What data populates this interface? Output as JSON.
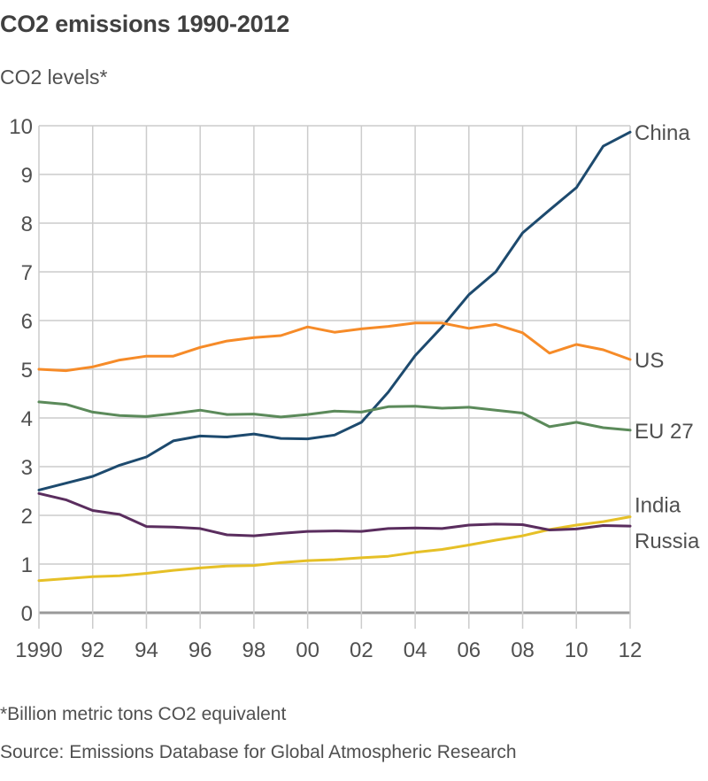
{
  "chart_data": {
    "type": "line",
    "title": "CO2 emissions 1990-2012",
    "subtitle": "CO2 levels*",
    "xlabel": "",
    "ylabel": "",
    "footnote": "*Billion metric tons CO2 equivalent",
    "source": "Source: Emissions Database for Global Atmospheric Research",
    "grid": true,
    "legend": "end-of-line labels (right)",
    "xlim": [
      1990,
      2012
    ],
    "ylim": [
      0,
      10
    ],
    "y_ticks": [
      0,
      1,
      2,
      3,
      4,
      5,
      6,
      7,
      8,
      9,
      10
    ],
    "y_tick_labels": [
      "0",
      "1",
      "2",
      "3",
      "4",
      "5",
      "6",
      "7",
      "8",
      "9",
      "10"
    ],
    "x_ticks": [
      1990,
      1992,
      1994,
      1996,
      1998,
      2000,
      2002,
      2004,
      2006,
      2008,
      2010,
      2012
    ],
    "x_tick_labels": [
      "1990",
      "92",
      "94",
      "96",
      "98",
      "00",
      "02",
      "04",
      "06",
      "08",
      "10",
      "12"
    ],
    "x": [
      1990,
      1991,
      1992,
      1993,
      1994,
      1995,
      1996,
      1997,
      1998,
      1999,
      2000,
      2001,
      2002,
      2003,
      2004,
      2005,
      2006,
      2007,
      2008,
      2009,
      2010,
      2011,
      2012
    ],
    "series": [
      {
        "name": "China",
        "label": "China",
        "color": "#1d4a6e",
        "values": [
          2.52,
          2.66,
          2.8,
          3.03,
          3.2,
          3.53,
          3.63,
          3.61,
          3.67,
          3.58,
          3.57,
          3.65,
          3.91,
          4.53,
          5.28,
          5.87,
          6.53,
          7.0,
          7.8,
          8.27,
          8.73,
          9.58,
          9.87
        ]
      },
      {
        "name": "US",
        "label": "US",
        "color": "#f68b28",
        "values": [
          5.0,
          4.97,
          5.05,
          5.19,
          5.27,
          5.27,
          5.45,
          5.58,
          5.65,
          5.69,
          5.87,
          5.76,
          5.83,
          5.88,
          5.95,
          5.95,
          5.84,
          5.92,
          5.75,
          5.33,
          5.51,
          5.4,
          5.2
        ]
      },
      {
        "name": "EU 27",
        "label": "EU 27",
        "color": "#5b8a5a",
        "values": [
          4.33,
          4.28,
          4.12,
          4.05,
          4.03,
          4.09,
          4.16,
          4.07,
          4.08,
          4.02,
          4.07,
          4.14,
          4.12,
          4.23,
          4.24,
          4.2,
          4.22,
          4.16,
          4.1,
          3.82,
          3.91,
          3.8,
          3.75
        ]
      },
      {
        "name": "India",
        "label": "India",
        "color": "#e6c027",
        "values": [
          0.66,
          0.7,
          0.74,
          0.76,
          0.81,
          0.87,
          0.92,
          0.96,
          0.97,
          1.03,
          1.07,
          1.09,
          1.13,
          1.16,
          1.24,
          1.3,
          1.39,
          1.49,
          1.58,
          1.71,
          1.8,
          1.87,
          1.97
        ]
      },
      {
        "name": "Russia",
        "label": "Russia",
        "color": "#5a2d5e",
        "values": [
          2.45,
          2.32,
          2.1,
          2.02,
          1.77,
          1.76,
          1.73,
          1.6,
          1.58,
          1.63,
          1.67,
          1.68,
          1.67,
          1.73,
          1.74,
          1.73,
          1.8,
          1.82,
          1.81,
          1.7,
          1.72,
          1.79,
          1.78
        ]
      }
    ]
  },
  "colors": {
    "grid": "#cccccc",
    "axis": "#999999",
    "text": "#505050"
  }
}
